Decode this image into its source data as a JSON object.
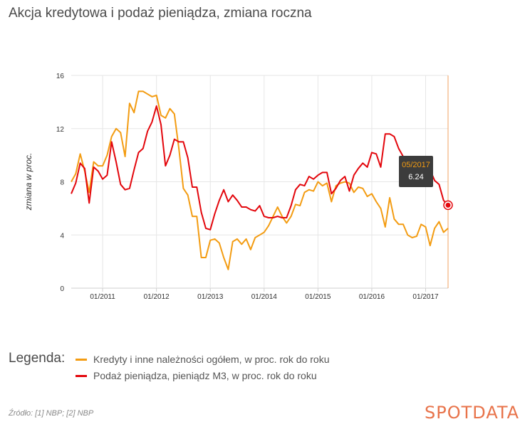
{
  "title": "Akcja kredytowa i podaż pieniądza, zmiana roczna",
  "legend": {
    "label": "Legenda:",
    "items": [
      {
        "name": "Kredyty i inne należności ogółem, w proc. rok do roku",
        "color": "#f39c12"
      },
      {
        "name": "Podaż pieniądza, pieniądz M3, w proc. rok do roku",
        "color": "#e3060c"
      }
    ]
  },
  "source": "Źródło: [1] NBP; [2] NBP",
  "brand": "SPOTDATA",
  "tooltip": {
    "date": "05/2017",
    "value": "6.24"
  },
  "chart_data": {
    "type": "line",
    "ylabel": "zmiana w proc.",
    "xlabel": "",
    "ylim": [
      0,
      16
    ],
    "yticks": [
      "0",
      "4",
      "8",
      "12",
      "16"
    ],
    "xticks": [
      "01/2011",
      "01/2012",
      "01/2013",
      "01/2014",
      "01/2015",
      "01/2016",
      "01/2017"
    ],
    "x_start": "06/2010",
    "x_end": "05/2017",
    "grid": true,
    "series": [
      {
        "name": "Kredyty i inne należności ogółem, w proc. rok do roku",
        "color": "#f39c12",
        "values": [
          8.0,
          8.6,
          10.1,
          8.8,
          7.2,
          9.5,
          9.2,
          9.2,
          10.0,
          11.4,
          12.0,
          11.7,
          9.9,
          13.9,
          13.2,
          14.8,
          14.8,
          14.6,
          14.4,
          14.5,
          13.0,
          12.8,
          13.5,
          13.1,
          10.5,
          7.5,
          7.0,
          5.4,
          5.4,
          2.3,
          2.3,
          3.6,
          3.7,
          3.4,
          2.3,
          1.4,
          3.5,
          3.7,
          3.3,
          3.7,
          2.9,
          3.8,
          4.0,
          4.2,
          4.7,
          5.4,
          6.1,
          5.4,
          4.9,
          5.4,
          6.3,
          6.2,
          7.2,
          7.4,
          7.3,
          8.0,
          7.7,
          7.9,
          6.5,
          7.7,
          7.9,
          8.0,
          7.9,
          7.2,
          7.6,
          7.5,
          6.9,
          7.1,
          6.5,
          6.0,
          4.6,
          6.8,
          5.2,
          4.8,
          4.8,
          4.0,
          3.8,
          3.9,
          4.8,
          4.6,
          3.2,
          4.5,
          5.0,
          4.2,
          4.5
        ],
        "tooltip_index": null
      },
      {
        "name": "Podaż pieniądza, pieniądz M3, w proc. rok do roku",
        "color": "#e3060c",
        "values": [
          7.1,
          7.9,
          9.4,
          9.0,
          6.4,
          9.1,
          8.8,
          8.2,
          8.5,
          11.0,
          9.5,
          7.8,
          7.4,
          7.5,
          8.9,
          10.2,
          10.5,
          11.8,
          12.5,
          13.7,
          12.3,
          9.2,
          10.0,
          11.2,
          11.0,
          11.0,
          9.8,
          7.6,
          7.6,
          5.7,
          4.5,
          4.4,
          5.6,
          6.6,
          7.4,
          6.5,
          7.0,
          6.6,
          6.1,
          6.1,
          5.9,
          5.8,
          6.2,
          5.4,
          5.3,
          5.3,
          5.4,
          5.3,
          5.3,
          6.2,
          7.4,
          7.8,
          7.7,
          8.4,
          8.2,
          8.5,
          8.7,
          8.7,
          7.1,
          7.5,
          8.1,
          8.4,
          7.3,
          8.5,
          9.0,
          9.4,
          9.1,
          10.2,
          10.1,
          9.1,
          11.6,
          11.6,
          11.4,
          10.5,
          9.9,
          9.4,
          9.0,
          9.1,
          9.0,
          9.1,
          8.9,
          8.1,
          7.8,
          6.6,
          6.24
        ]
      }
    ]
  }
}
